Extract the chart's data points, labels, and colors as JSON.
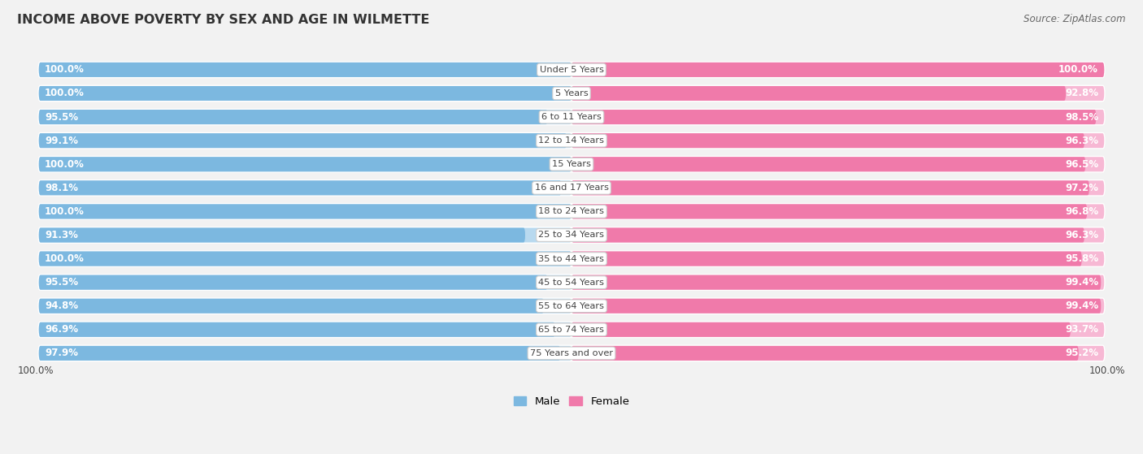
{
  "title": "INCOME ABOVE POVERTY BY SEX AND AGE IN WILMETTE",
  "source": "Source: ZipAtlas.com",
  "categories": [
    "Under 5 Years",
    "5 Years",
    "6 to 11 Years",
    "12 to 14 Years",
    "15 Years",
    "16 and 17 Years",
    "18 to 24 Years",
    "25 to 34 Years",
    "35 to 44 Years",
    "45 to 54 Years",
    "55 to 64 Years",
    "65 to 74 Years",
    "75 Years and over"
  ],
  "male_values": [
    100.0,
    100.0,
    95.5,
    99.1,
    100.0,
    98.1,
    100.0,
    91.3,
    100.0,
    95.5,
    94.8,
    96.9,
    97.9
  ],
  "female_values": [
    100.0,
    92.8,
    98.5,
    96.3,
    96.5,
    97.2,
    96.8,
    96.3,
    95.8,
    99.4,
    99.4,
    93.7,
    95.2
  ],
  "male_color": "#7cb8e0",
  "male_color_light": "#b8d9ef",
  "female_color": "#f07aaa",
  "female_color_light": "#f7b8d4",
  "max_val": 100.0,
  "bg_color": "#f0f0f0",
  "legend_male": "Male",
  "legend_female": "Female",
  "bottom_left": "100.0%",
  "bottom_right": "100.0%"
}
